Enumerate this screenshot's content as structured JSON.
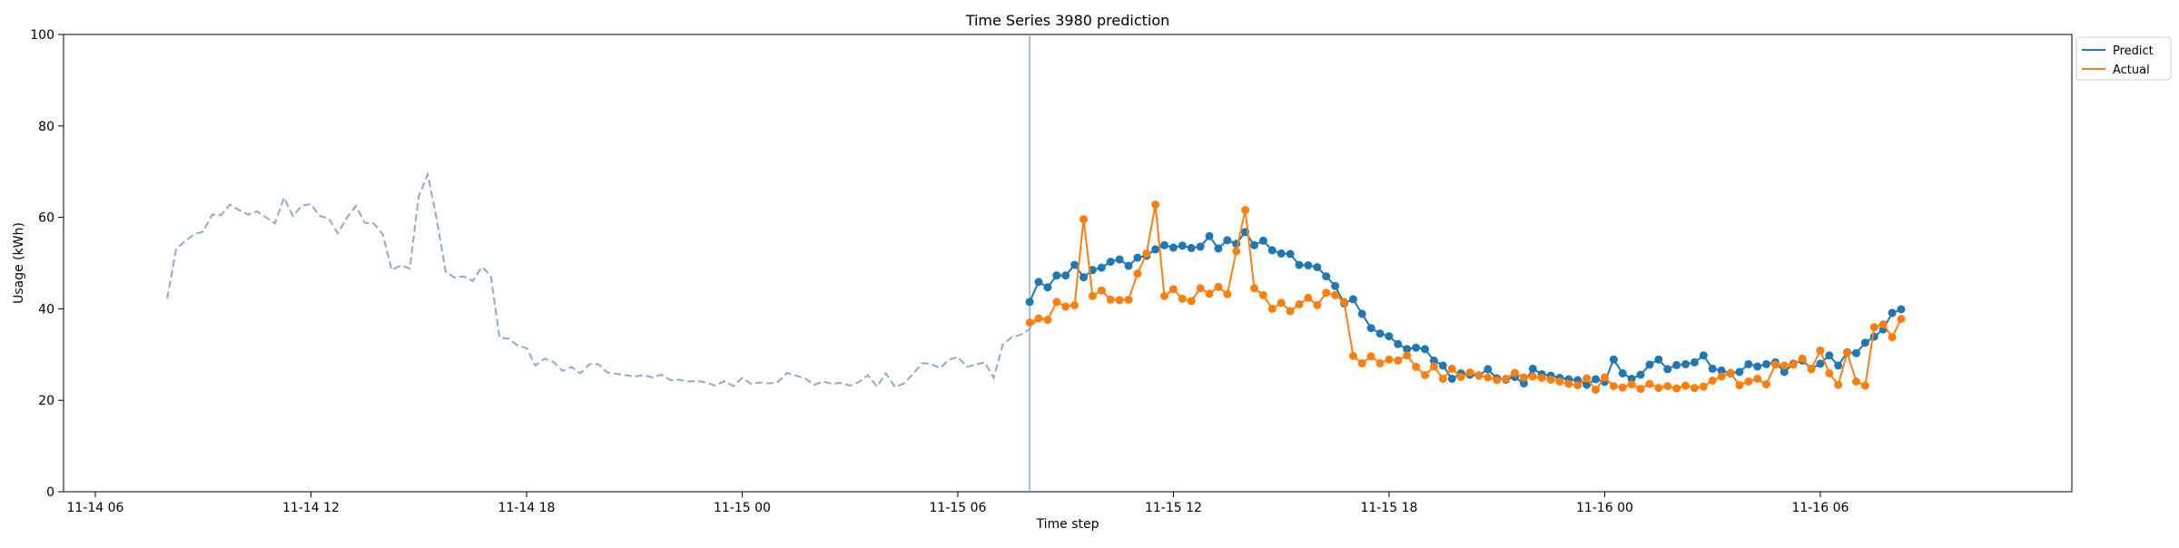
{
  "chart_data": {
    "type": "line",
    "title": "Time Series 3980 prediction",
    "xlabel": "Time step",
    "ylabel": "Usage (kWh)",
    "ylim": [
      0,
      100
    ],
    "xlim": [
      "11-14 05:07",
      "11-16 13:00"
    ],
    "x_ticks": [
      {
        "t": "11-14 06:00",
        "label": "11-14 06"
      },
      {
        "t": "11-14 12:00",
        "label": "11-14 12"
      },
      {
        "t": "11-14 18:00",
        "label": "11-14 18"
      },
      {
        "t": "11-15 00:00",
        "label": "11-15 00"
      },
      {
        "t": "11-15 06:00",
        "label": "11-15 06"
      },
      {
        "t": "11-15 12:00",
        "label": "11-15 12"
      },
      {
        "t": "11-15 18:00",
        "label": "11-15 18"
      },
      {
        "t": "11-16 00:00",
        "label": "11-16 00"
      },
      {
        "t": "11-16 06:00",
        "label": "11-16 06"
      }
    ],
    "y_ticks": [
      0,
      20,
      40,
      60,
      80,
      100
    ],
    "grid": false,
    "legend_position": "outside-top-right",
    "forecast_start": "11-15 08:00",
    "history": {
      "start": "11-14 08:00",
      "step_minutes": 15,
      "color": "#8fa9cf",
      "style": "dashed",
      "values": [
        42.2,
        53.1,
        54.8,
        56.3,
        56.9,
        60.6,
        60.5,
        62.8,
        61.6,
        60.6,
        61.3,
        60.0,
        58.7,
        64.3,
        60.3,
        62.6,
        62.9,
        60.3,
        59.7,
        56.5,
        59.9,
        62.5,
        58.8,
        58.7,
        56.3,
        48.5,
        49.5,
        48.8,
        64.6,
        69.4,
        59.6,
        48.1,
        46.8,
        47.1,
        46.1,
        49.1,
        47.4,
        33.7,
        33.5,
        32.0,
        31.4,
        27.6,
        29.1,
        28.4,
        26.4,
        27.3,
        25.9,
        27.9,
        27.9,
        26.1,
        25.8,
        25.5,
        25.2,
        25.5,
        25.0,
        25.6,
        24.4,
        24.5,
        24.1,
        24.2,
        23.9,
        23.2,
        24.2,
        23.1,
        24.9,
        23.6,
        23.9,
        23.7,
        24.0,
        26.0,
        25.4,
        24.8,
        23.4,
        24.1,
        23.6,
        23.8,
        23.2,
        24.0,
        25.5,
        23.0,
        25.9,
        22.9,
        23.7,
        25.7,
        28.1,
        28.0,
        27.0,
        28.8,
        29.5,
        27.3,
        27.8,
        28.3,
        24.9,
        32.1,
        33.8,
        34.3,
        35.6,
        38.0,
        37.6
      ]
    },
    "series": [
      {
        "name": "Predict",
        "color": "#1f77b4",
        "start": "11-15 08:00",
        "step_minutes": 15,
        "values": [
          41.5,
          45.9,
          44.7,
          47.3,
          47.3,
          49.6,
          46.9,
          48.5,
          49.0,
          50.3,
          50.8,
          49.4,
          51.2,
          51.6,
          53.0,
          53.9,
          53.4,
          53.8,
          53.3,
          53.6,
          55.9,
          53.2,
          55.0,
          54.2,
          56.8,
          53.9,
          54.9,
          52.8,
          52.1,
          52.0,
          49.6,
          49.5,
          49.1,
          47.1,
          45.0,
          41.2,
          42.1,
          38.9,
          35.8,
          34.6,
          34.0,
          32.3,
          31.2,
          31.5,
          31.2,
          28.7,
          27.6,
          24.7,
          25.9,
          25.6,
          25.4,
          26.8,
          24.8,
          24.5,
          25.1,
          23.7,
          26.9,
          25.7,
          25.4,
          24.9,
          24.6,
          24.4,
          23.4,
          24.6,
          24.0,
          28.9,
          25.9,
          24.7,
          25.6,
          27.8,
          28.9,
          26.8,
          27.7,
          27.9,
          28.3,
          29.8,
          26.9,
          26.5,
          25.9,
          26.2,
          27.9,
          27.4,
          27.9,
          28.3,
          26.2,
          28.0,
          28.7,
          26.9,
          28.0,
          29.8,
          27.6,
          30.5,
          30.3,
          32.6,
          33.9,
          35.5,
          39.1,
          39.9
        ]
      },
      {
        "name": "Actual",
        "color": "#ff7f0e",
        "start": "11-15 08:00",
        "step_minutes": 15,
        "values": [
          37.0,
          37.9,
          37.6,
          41.5,
          40.5,
          40.8,
          59.6,
          42.8,
          44.0,
          42.0,
          41.9,
          42.0,
          47.7,
          52.1,
          62.8,
          42.8,
          44.3,
          42.2,
          41.7,
          44.5,
          43.3,
          44.8,
          43.2,
          52.6,
          61.6,
          44.5,
          43.0,
          40.0,
          41.3,
          39.5,
          41.0,
          42.4,
          40.8,
          43.5,
          43.0,
          41.5,
          29.7,
          28.1,
          29.6,
          28.1,
          28.9,
          28.7,
          29.8,
          27.3,
          25.5,
          27.4,
          24.7,
          26.9,
          25.1,
          26.1,
          25.5,
          25.0,
          24.4,
          24.7,
          26.0,
          25.0,
          25.2,
          24.9,
          24.5,
          24.1,
          23.6,
          23.3,
          24.8,
          22.3,
          25.0,
          23.1,
          22.8,
          23.5,
          22.5,
          23.6,
          22.7,
          23.1,
          22.6,
          23.2,
          22.7,
          23.0,
          24.3,
          25.2,
          26.0,
          23.3,
          24.1,
          24.7,
          23.5,
          27.8,
          27.6,
          27.8,
          29.1,
          26.8,
          30.9,
          25.9,
          23.4,
          30.4,
          24.1,
          23.2,
          36.0,
          36.6,
          33.8,
          37.8
        ]
      }
    ]
  }
}
